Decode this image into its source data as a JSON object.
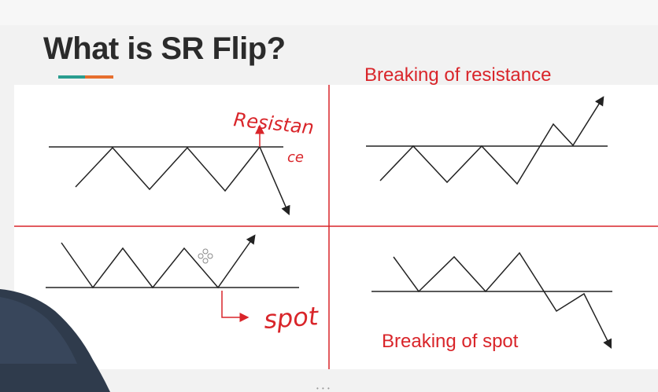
{
  "slide": {
    "title": "What is SR Flip?",
    "accent_colors": [
      "#2a9d8f",
      "#e76f2e"
    ],
    "divider_color": "#d9252a"
  },
  "panels": {
    "top_right_label": "Breaking of resistance",
    "bottom_right_label": "Breaking of spot"
  },
  "annotations": {
    "resistance_handwritten_line1": "Resistan",
    "resistance_handwritten_line2": "ce",
    "spot_handwritten": "spot"
  },
  "icons": {
    "cursor": "move-cursor-icon",
    "presenter": "presenter-silhouette"
  }
}
